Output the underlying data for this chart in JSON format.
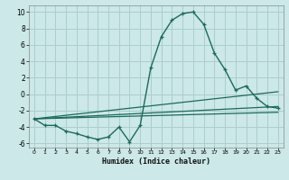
{
  "xlabel": "Humidex (Indice chaleur)",
  "ylabel": "",
  "xlim": [
    -0.5,
    23.5
  ],
  "ylim": [
    -6.5,
    10.8
  ],
  "yticks": [
    -6,
    -4,
    -2,
    0,
    2,
    4,
    6,
    8,
    10
  ],
  "xticks": [
    0,
    1,
    2,
    3,
    4,
    5,
    6,
    7,
    8,
    9,
    10,
    11,
    12,
    13,
    14,
    15,
    16,
    17,
    18,
    19,
    20,
    21,
    22,
    23
  ],
  "bg_color": "#cce8e8",
  "grid_color": "#aacece",
  "line_color": "#1a6b5a",
  "line1_x": [
    0,
    1,
    2,
    3,
    4,
    5,
    6,
    7,
    8,
    9,
    10,
    11,
    12,
    13,
    14,
    15,
    16,
    17,
    18,
    19,
    20,
    21,
    22,
    23
  ],
  "line1_y": [
    -3.0,
    -3.8,
    -3.8,
    -4.5,
    -4.8,
    -5.2,
    -5.5,
    -5.2,
    -4.0,
    -5.8,
    -3.8,
    3.2,
    7.0,
    9.0,
    9.8,
    10.0,
    8.5,
    5.0,
    3.0,
    0.5,
    1.0,
    -0.5,
    -1.5,
    -1.7
  ],
  "line2_x": [
    0,
    23
  ],
  "line2_y": [
    -3.0,
    -1.5
  ],
  "line3_x": [
    0,
    23
  ],
  "line3_y": [
    -3.0,
    -2.2
  ],
  "line4_x": [
    0,
    23
  ],
  "line4_y": [
    -3.0,
    0.3
  ]
}
